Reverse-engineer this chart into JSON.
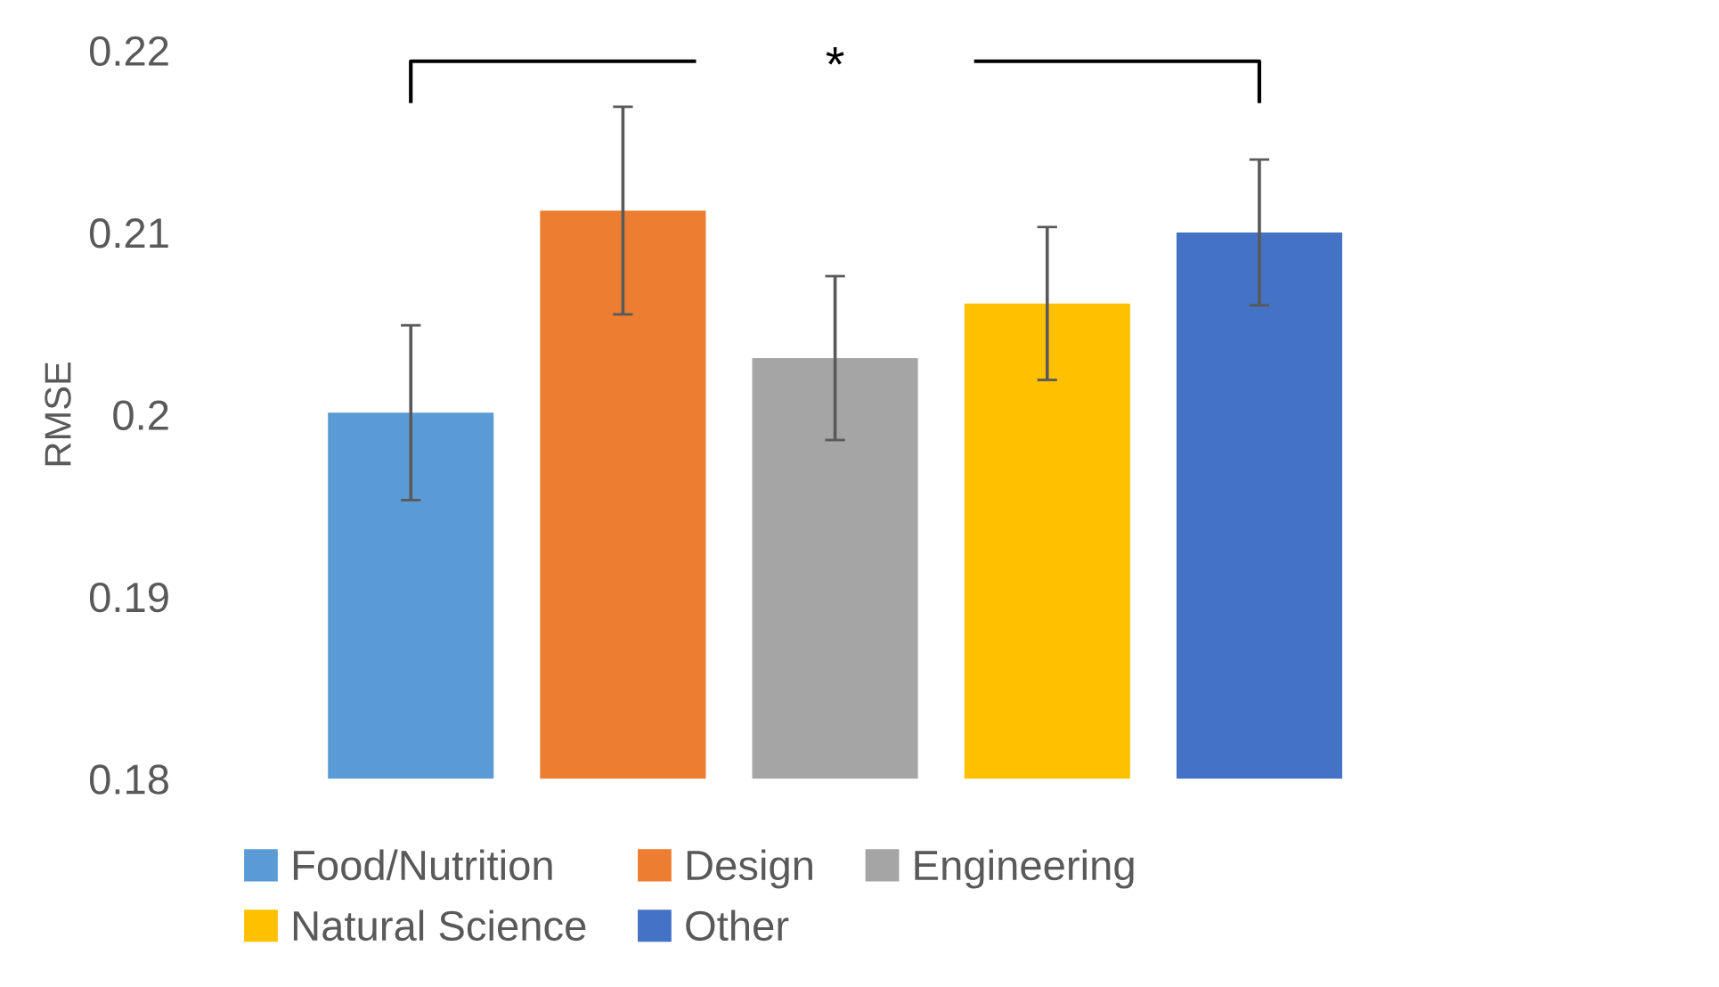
{
  "chart_data": {
    "type": "bar",
    "ylabel": "RMSE",
    "categories": [
      null
    ],
    "series": [
      {
        "name": "Food/Nutrition",
        "color": "#5b9bd5",
        "values": [
          0.2001
        ],
        "errors": [
          0.0048
        ]
      },
      {
        "name": "Design",
        "color": "#ed7d31",
        "values": [
          0.2112
        ],
        "errors": [
          0.0057
        ]
      },
      {
        "name": "Engineering",
        "color": "#a5a5a5",
        "values": [
          0.2031
        ],
        "errors": [
          0.0045
        ]
      },
      {
        "name": "Natural Science",
        "color": "#ffc000",
        "values": [
          0.2061
        ],
        "errors": [
          0.0042
        ]
      },
      {
        "name": "Other",
        "color": "#4472c4",
        "values": [
          0.21
        ],
        "errors": [
          0.004
        ]
      }
    ],
    "ylim": [
      0.18,
      0.22
    ],
    "yticks": [
      0.18,
      0.19,
      0.2,
      0.21,
      0.22
    ],
    "annotations": [
      "*"
    ],
    "legend": "bottom",
    "grid": false
  }
}
